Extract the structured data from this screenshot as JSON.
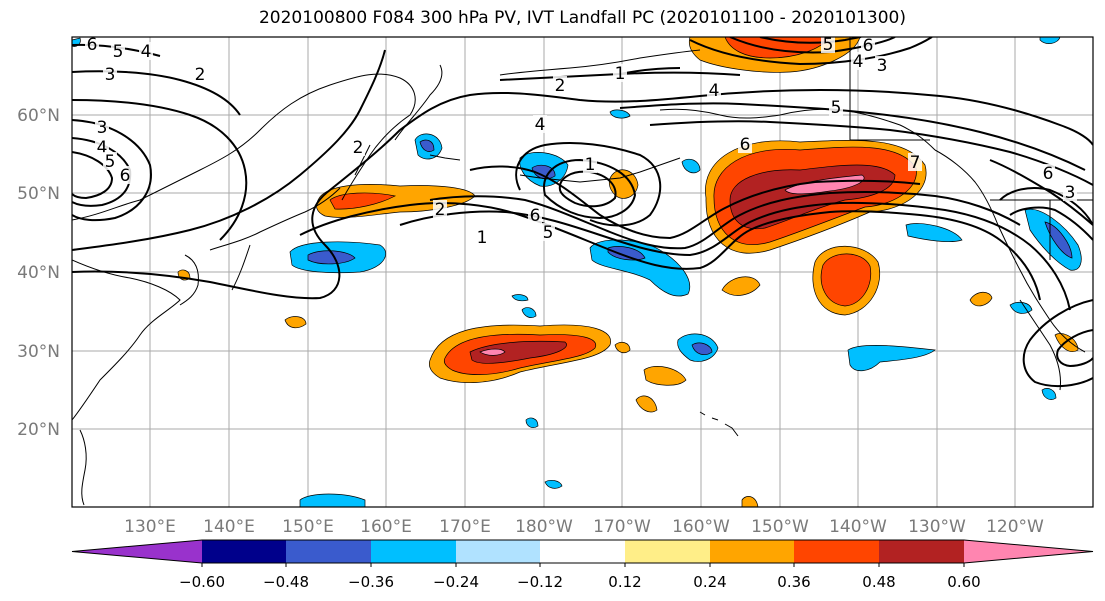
{
  "title": "2020100800 F084 300 hPa PV, IVT Landfall PC (2020101100 - 2020101300)",
  "map": {
    "lat_labels": [
      "60°N",
      "50°N",
      "40°N",
      "30°N",
      "20°N"
    ],
    "lon_labels": [
      "130°E",
      "140°E",
      "150°E",
      "160°E",
      "170°E",
      "180°W",
      "170°W",
      "160°W",
      "150°W",
      "140°W",
      "130°W",
      "120°W"
    ],
    "contour_labels": [
      "6",
      "5",
      "4",
      "3",
      "2",
      "3",
      "4",
      "5",
      "6",
      "2",
      "1",
      "2",
      "1",
      "2",
      "1",
      "6",
      "5",
      "4",
      "3",
      "4",
      "5",
      "6",
      "7",
      "6",
      "3",
      "4",
      "5",
      "6"
    ]
  },
  "colorbar": {
    "colors": [
      "#9932cc",
      "#00008b",
      "#3a5bcd",
      "#00bfff",
      "#b0e2ff",
      "#ffffff",
      "#ffee88",
      "#ffa500",
      "#ff4500",
      "#b22222",
      "#ff85b0"
    ],
    "tick_labels": [
      "-0.60",
      "-0.48",
      "-0.36",
      "-0.24",
      "-0.12",
      "0.12",
      "0.24",
      "0.36",
      "0.48",
      "0.60"
    ]
  }
}
